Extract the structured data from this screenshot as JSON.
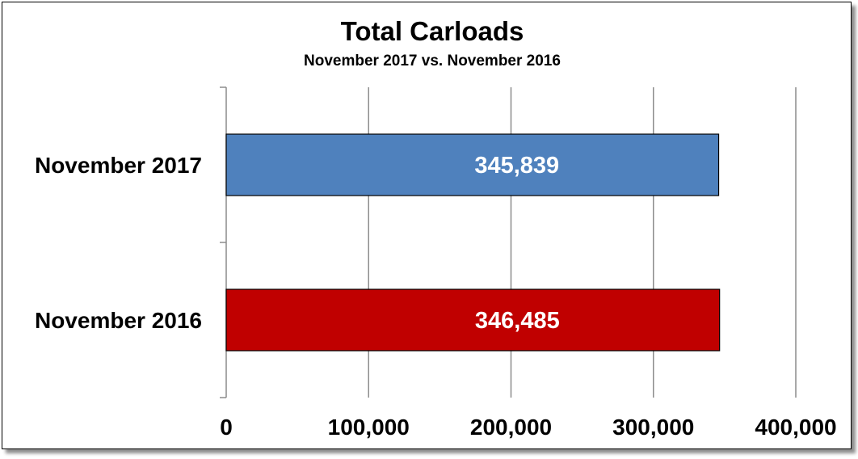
{
  "chart_data": {
    "type": "bar",
    "orientation": "horizontal",
    "title": "Total Carloads",
    "subtitle": "November 2017 vs. November 2016",
    "categories": [
      "November 2017",
      "November 2016"
    ],
    "values": [
      345839,
      346485
    ],
    "value_labels": [
      "345,839",
      "346,485"
    ],
    "bar_colors": [
      "#4F81BD",
      "#C00000"
    ],
    "xlim": [
      0,
      400000
    ],
    "x_ticks": [
      0,
      100000,
      200000,
      300000,
      400000
    ],
    "x_tick_labels": [
      "0",
      "100,000",
      "200,000",
      "300,000",
      "400,000"
    ],
    "xlabel": "",
    "ylabel": "",
    "grid": true,
    "legend": "none"
  }
}
